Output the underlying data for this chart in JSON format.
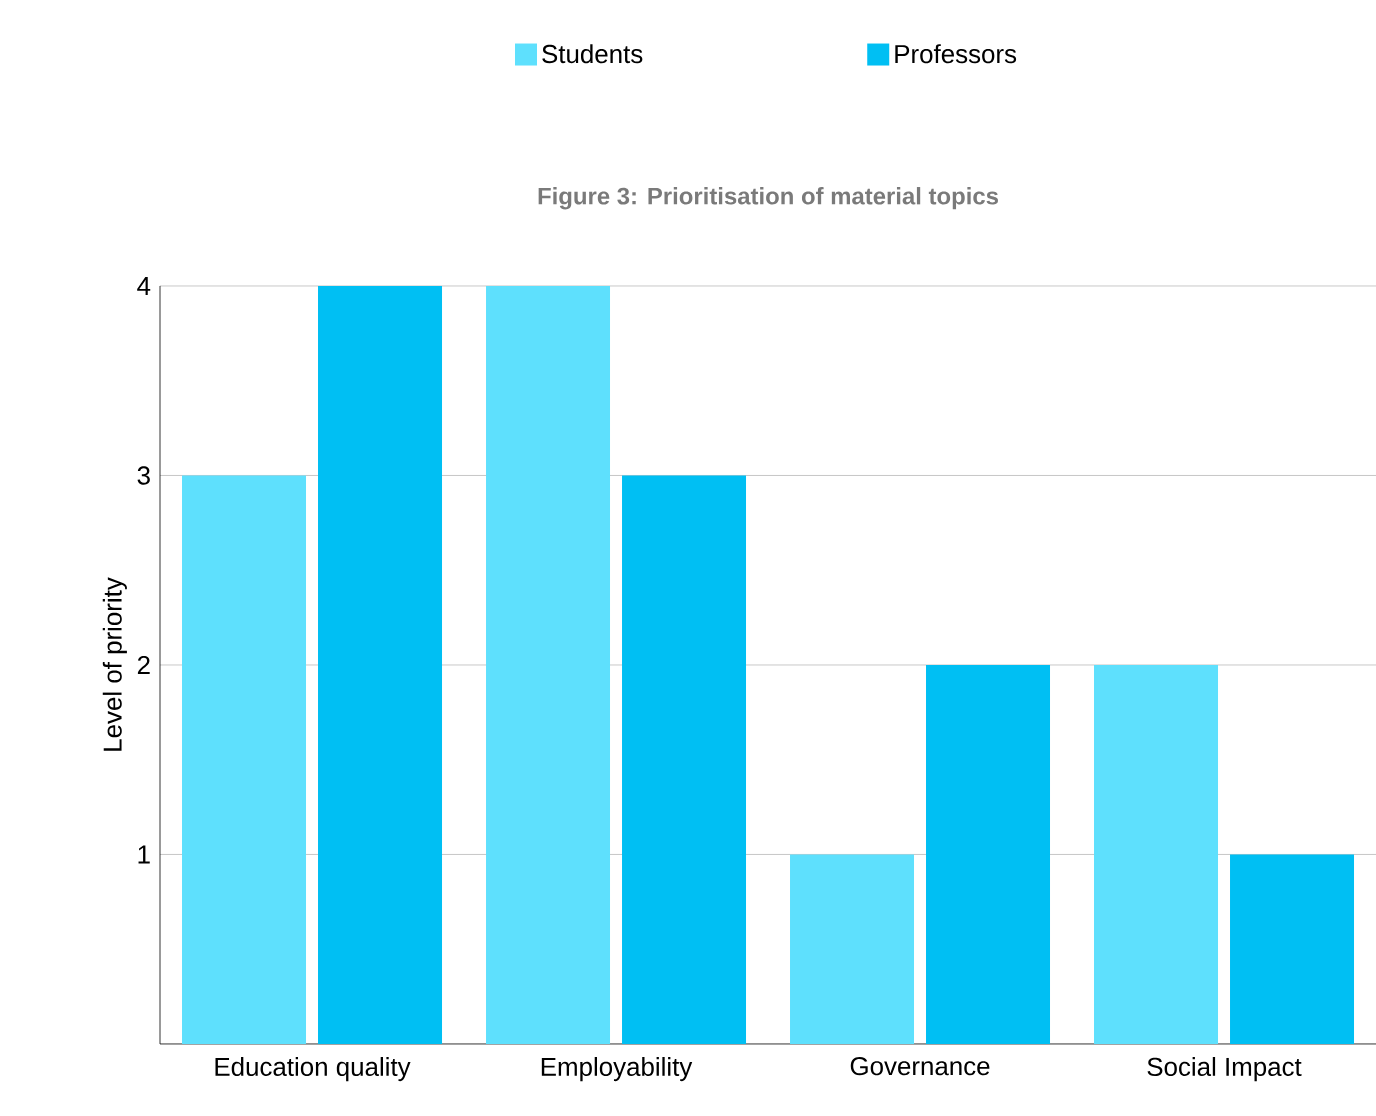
{
  "chart_data": {
    "type": "bar",
    "title": "Figure 3: Prioritisation of material topics",
    "ylabel": "Level of priority",
    "categories": [
      "Education quality",
      "Employability",
      "Governance",
      "Social Impact"
    ],
    "series": [
      {
        "name": "Students",
        "color": "#5ee0fd",
        "values": [
          3,
          4,
          1,
          2
        ]
      },
      {
        "name": "Professors",
        "color": "#00bff3",
        "values": [
          4,
          3,
          2,
          1
        ]
      }
    ],
    "ylim": [
      0,
      4
    ],
    "yticks": [
      1,
      2,
      3,
      4
    ],
    "grid": "y",
    "legend": "top"
  }
}
